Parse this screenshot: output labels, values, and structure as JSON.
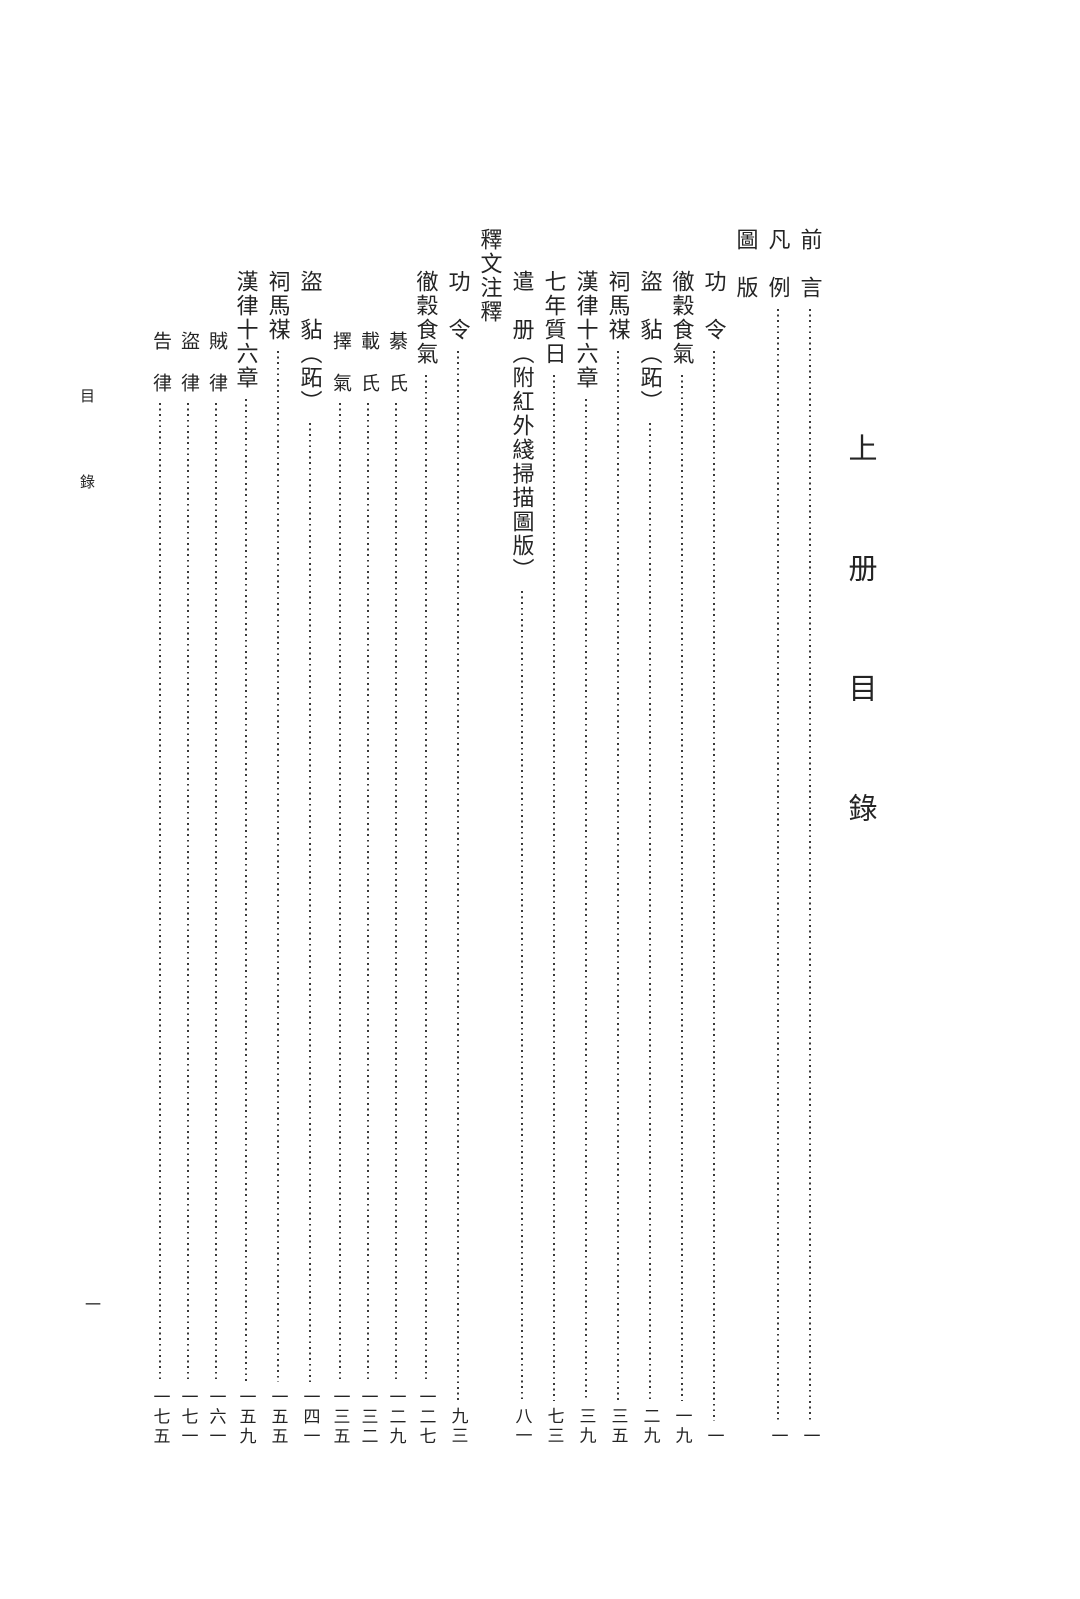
{
  "style": {
    "background": "#ffffff",
    "ink": "#242424",
    "dot_color": "#383838"
  },
  "page": {
    "book_title": "上　册　目　錄",
    "margin_label": "目　錄",
    "folio_number": "一"
  },
  "toc": {
    "entries": [
      {
        "label": "前　言",
        "page": "一",
        "level": 0,
        "type": "entry"
      },
      {
        "label": "凡　例",
        "page": "一",
        "level": 0,
        "type": "entry"
      },
      {
        "label": "圖　版",
        "page": "",
        "level": 0,
        "type": "header"
      },
      {
        "label": "功　令",
        "page": "一",
        "level": 1,
        "type": "entry"
      },
      {
        "label": "徹穀食氣",
        "page": "一九",
        "level": 1,
        "type": "entry"
      },
      {
        "label": "盜　𧲸（跖）",
        "page": "二九",
        "level": 1,
        "type": "entry"
      },
      {
        "label": "祠馬禖",
        "page": "三五",
        "level": 1,
        "type": "entry"
      },
      {
        "label": "漢律十六章",
        "page": "三九",
        "level": 1,
        "type": "entry"
      },
      {
        "label": "七年質日",
        "page": "七三",
        "level": 1,
        "type": "entry"
      },
      {
        "label": "遣　册（附紅外綫掃描圖版）",
        "page": "八一",
        "level": 1,
        "type": "entry"
      },
      {
        "label": "釋文注釋",
        "page": "",
        "level": 0,
        "type": "header"
      },
      {
        "label": "功　令",
        "page": "九三",
        "level": 1,
        "type": "entry"
      },
      {
        "label": "徹穀食氣",
        "page": "一二七",
        "level": 1,
        "type": "entry"
      },
      {
        "label": "綦　氏",
        "page": "一二九",
        "level": 2,
        "type": "entry"
      },
      {
        "label": "載　氏",
        "page": "一三二",
        "level": 2,
        "type": "entry"
      },
      {
        "label": "擇　氣",
        "page": "一三五",
        "level": 2,
        "type": "entry"
      },
      {
        "label": "盜　𧲸（跖）",
        "page": "一四一",
        "level": 1,
        "type": "entry"
      },
      {
        "label": "祠馬禖",
        "page": "一五五",
        "level": 1,
        "type": "entry"
      },
      {
        "label": "漢律十六章",
        "page": "一五九",
        "level": 1,
        "type": "entry"
      },
      {
        "label": "賊　律",
        "page": "一六一",
        "level": 2,
        "type": "entry"
      },
      {
        "label": "盜　律",
        "page": "一七一",
        "level": 2,
        "type": "entry"
      },
      {
        "label": "告　律",
        "page": "一七五",
        "level": 2,
        "type": "entry"
      }
    ]
  }
}
